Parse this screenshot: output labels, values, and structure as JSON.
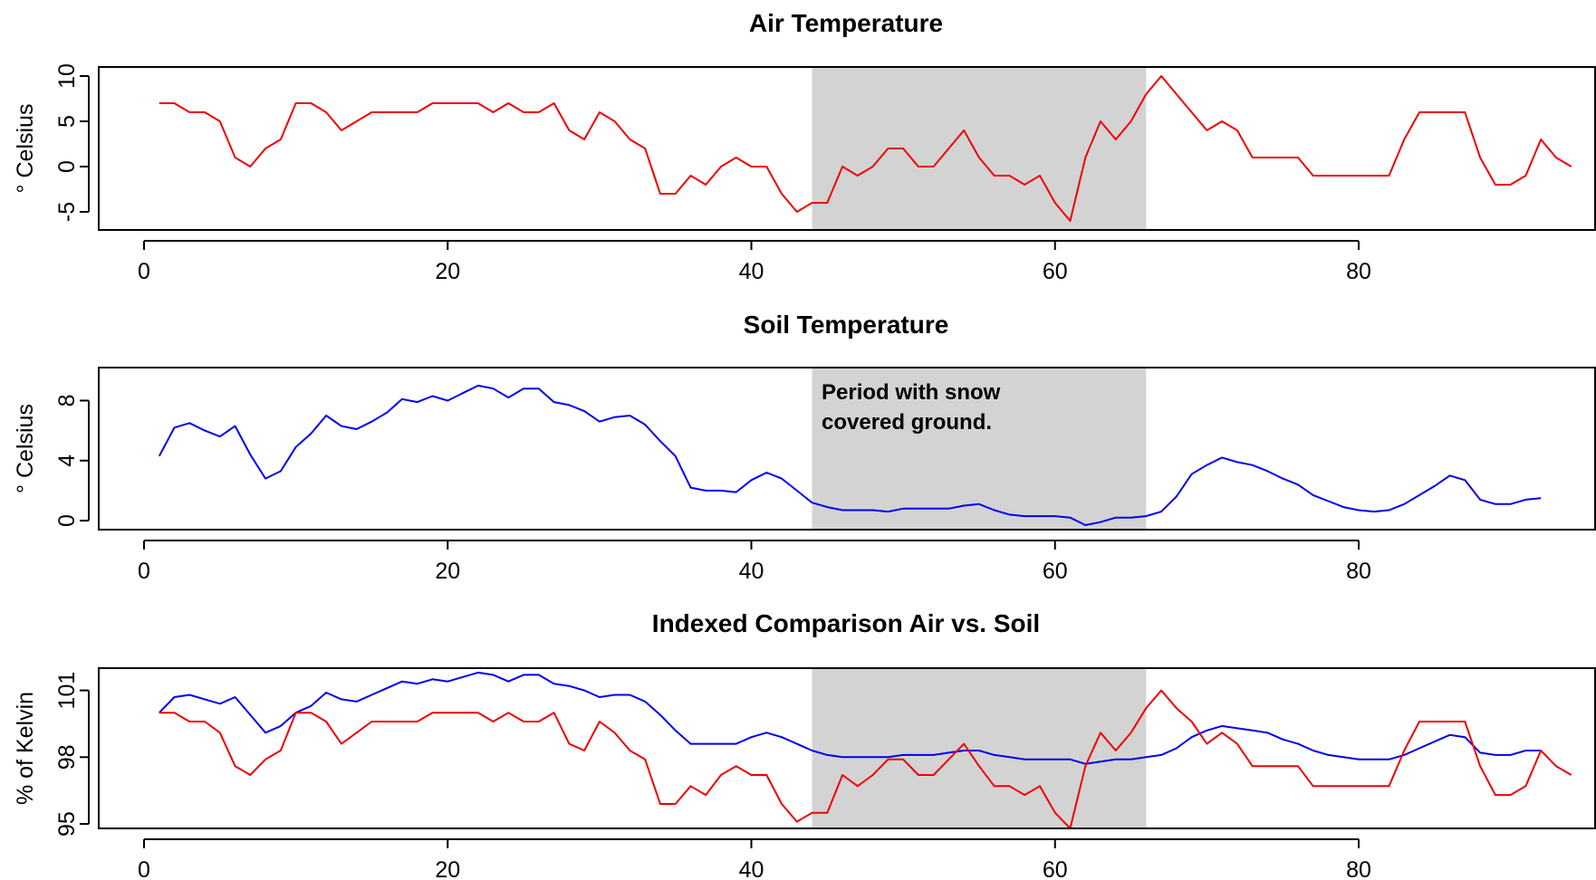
{
  "chart_data": [
    {
      "type": "line",
      "title": "Air Temperature",
      "xlabel": "",
      "ylabel": "° Celsius",
      "xlim": [
        0,
        95
      ],
      "ylim": [
        -7,
        11
      ],
      "x_ticks": [
        0,
        20,
        40,
        60,
        80
      ],
      "y_ticks": [
        -5,
        0,
        5,
        10
      ],
      "grid": false,
      "shaded_region": {
        "x_start": 44,
        "x_end": 66,
        "color": "#d3d3d3"
      },
      "annotation": null,
      "series": [
        {
          "color": "#ee0000",
          "x_start": 1,
          "values": [
            7,
            7,
            6,
            6,
            5,
            1,
            0,
            2,
            3,
            7,
            7,
            6,
            4,
            5,
            6,
            6,
            6,
            6,
            7,
            7,
            7,
            7,
            6,
            7,
            6,
            6,
            7,
            4,
            3,
            6,
            5,
            3,
            2,
            -3,
            -3,
            -1,
            -2,
            0,
            1,
            0,
            0,
            -3,
            -5,
            -4,
            -4,
            0,
            -1,
            0,
            2,
            2,
            0,
            0,
            2,
            4,
            1,
            -1,
            -1,
            -2,
            -1,
            -4,
            -6,
            1,
            5,
            3,
            5,
            8,
            10,
            8,
            6,
            4,
            5,
            4,
            1,
            1,
            1,
            1,
            -1,
            -1,
            -1,
            -1,
            -1,
            -1,
            3,
            6,
            6,
            6,
            6,
            1,
            -2,
            -2,
            -1,
            3,
            1,
            0
          ]
        }
      ]
    },
    {
      "type": "line",
      "title": "Soil Temperature",
      "xlabel": "",
      "ylabel": "° Celsius",
      "xlim": [
        0,
        95
      ],
      "ylim": [
        -0.6,
        10.2
      ],
      "x_ticks": [
        0,
        20,
        40,
        60,
        80
      ],
      "y_ticks": [
        0,
        4,
        8
      ],
      "grid": false,
      "shaded_region": {
        "x_start": 44,
        "x_end": 66,
        "color": "#d3d3d3"
      },
      "annotation": {
        "line1": "Period with snow",
        "line2": "covered ground."
      },
      "series": [
        {
          "color": "#0000ee",
          "x_start": 1,
          "values": [
            4.3,
            6.2,
            6.5,
            6.0,
            5.6,
            6.3,
            4.4,
            2.8,
            3.3,
            4.9,
            5.8,
            7.0,
            6.3,
            6.1,
            6.6,
            7.2,
            8.1,
            7.9,
            8.3,
            8.0,
            8.5,
            9.0,
            8.8,
            8.2,
            8.8,
            8.8,
            7.9,
            7.7,
            7.3,
            6.6,
            6.9,
            7.0,
            6.4,
            5.3,
            4.3,
            2.2,
            2.0,
            2.0,
            1.9,
            2.7,
            3.2,
            2.8,
            2.0,
            1.2,
            0.9,
            0.7,
            0.7,
            0.7,
            0.6,
            0.8,
            0.8,
            0.8,
            0.8,
            1.0,
            1.1,
            0.7,
            0.4,
            0.3,
            0.3,
            0.3,
            0.2,
            -0.3,
            -0.1,
            0.2,
            0.2,
            0.3,
            0.6,
            1.6,
            3.1,
            3.7,
            4.2,
            3.9,
            3.7,
            3.3,
            2.8,
            2.4,
            1.7,
            1.3,
            0.9,
            0.7,
            0.6,
            0.7,
            1.1,
            1.7,
            2.3,
            3.0,
            2.7,
            1.4,
            1.1,
            1.1,
            1.4,
            1.5
          ]
        }
      ]
    },
    {
      "type": "line",
      "title": "Indexed Comparison Air vs. Soil",
      "xlabel": "",
      "ylabel": "% of Kelvin",
      "xlim": [
        0,
        95
      ],
      "ylim": [
        94.8,
        102.0
      ],
      "x_ticks": [
        0,
        20,
        40,
        60,
        80
      ],
      "y_ticks": [
        95,
        98,
        101
      ],
      "y_tick_labels": [
        "95",
        "98",
        "101"
      ],
      "grid": false,
      "shaded_region": {
        "x_start": 44,
        "x_end": 66,
        "color": "#d3d3d3"
      },
      "annotation": null,
      "series": [
        {
          "color": "#0000ee",
          "x_start": 1,
          "values": [
            100.0,
            100.7,
            100.8,
            100.6,
            100.4,
            100.7,
            99.9,
            99.1,
            99.4,
            100.0,
            100.3,
            100.9,
            100.6,
            100.5,
            100.8,
            101.1,
            101.4,
            101.3,
            101.5,
            101.4,
            101.6,
            101.8,
            101.7,
            101.4,
            101.7,
            101.7,
            101.3,
            101.2,
            101.0,
            100.7,
            100.8,
            100.8,
            100.5,
            99.9,
            99.2,
            98.6,
            98.6,
            98.6,
            98.6,
            98.9,
            99.1,
            98.9,
            98.6,
            98.3,
            98.1,
            98.0,
            98.0,
            98.0,
            98.0,
            98.1,
            98.1,
            98.1,
            98.2,
            98.3,
            98.3,
            98.1,
            98.0,
            97.9,
            97.9,
            97.9,
            97.9,
            97.7,
            97.8,
            97.9,
            97.9,
            98.0,
            98.1,
            98.4,
            98.9,
            99.2,
            99.4,
            99.3,
            99.2,
            99.1,
            98.8,
            98.6,
            98.3,
            98.1,
            98.0,
            97.9,
            97.9,
            97.9,
            98.1,
            98.4,
            98.7,
            99.0,
            98.9,
            98.2,
            98.1,
            98.1,
            98.3,
            98.3
          ]
        },
        {
          "color": "#ee0000",
          "x_start": 1,
          "values": [
            100.0,
            100.0,
            99.6,
            99.6,
            99.1,
            97.6,
            97.2,
            97.9,
            98.3,
            100.0,
            100.0,
            99.6,
            98.6,
            99.1,
            99.6,
            99.6,
            99.6,
            99.6,
            100.0,
            100.0,
            100.0,
            100.0,
            99.6,
            100.0,
            99.6,
            99.6,
            100.0,
            98.6,
            98.3,
            99.6,
            99.1,
            98.3,
            97.9,
            95.9,
            95.9,
            96.7,
            96.3,
            97.2,
            97.6,
            97.2,
            97.2,
            95.9,
            95.1,
            95.5,
            95.5,
            97.2,
            96.7,
            97.2,
            97.9,
            97.9,
            97.2,
            97.2,
            97.9,
            98.6,
            97.6,
            96.7,
            96.7,
            96.3,
            96.7,
            95.5,
            94.8,
            97.6,
            99.1,
            98.3,
            99.1,
            100.2,
            101.0,
            100.2,
            99.6,
            98.6,
            99.1,
            98.6,
            97.6,
            97.6,
            97.6,
            97.6,
            96.7,
            96.7,
            96.7,
            96.7,
            96.7,
            96.7,
            98.3,
            99.6,
            99.6,
            99.6,
            99.6,
            97.6,
            96.3,
            96.3,
            96.7,
            98.3,
            97.6,
            97.2
          ]
        }
      ]
    }
  ]
}
